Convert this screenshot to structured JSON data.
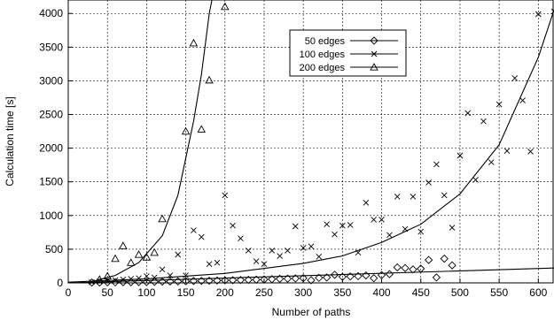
{
  "chart_data": {
    "type": "scatter",
    "title": "",
    "xlabel": "Number of paths",
    "ylabel": "Calculation time [s]",
    "xlim": [
      0,
      620
    ],
    "ylim": [
      0,
      4200
    ],
    "xticks": [
      0,
      50,
      100,
      150,
      200,
      250,
      300,
      350,
      400,
      450,
      500,
      550,
      600
    ],
    "yticks": [
      0,
      500,
      1000,
      1500,
      2000,
      2500,
      3000,
      3500,
      4000
    ],
    "grid": true,
    "legend_position": "top-center",
    "series": [
      {
        "name": "50 edges",
        "marker": "diamond",
        "points": [
          [
            30,
            5
          ],
          [
            40,
            5
          ],
          [
            50,
            8
          ],
          [
            60,
            8
          ],
          [
            70,
            10
          ],
          [
            80,
            10
          ],
          [
            90,
            12
          ],
          [
            100,
            12
          ],
          [
            110,
            15
          ],
          [
            120,
            18
          ],
          [
            130,
            20
          ],
          [
            140,
            22
          ],
          [
            150,
            25
          ],
          [
            160,
            28
          ],
          [
            170,
            30
          ],
          [
            180,
            32
          ],
          [
            190,
            35
          ],
          [
            200,
            38
          ],
          [
            210,
            40
          ],
          [
            220,
            42
          ],
          [
            230,
            45
          ],
          [
            240,
            48
          ],
          [
            250,
            50
          ],
          [
            260,
            55
          ],
          [
            270,
            60
          ],
          [
            280,
            62
          ],
          [
            290,
            65
          ],
          [
            300,
            70
          ],
          [
            310,
            40
          ],
          [
            320,
            75
          ],
          [
            330,
            80
          ],
          [
            340,
            120
          ],
          [
            350,
            90
          ],
          [
            360,
            95
          ],
          [
            370,
            100
          ],
          [
            380,
            110
          ],
          [
            390,
            70
          ],
          [
            400,
            115
          ],
          [
            410,
            130
          ],
          [
            420,
            230
          ],
          [
            430,
            220
          ],
          [
            440,
            200
          ],
          [
            450,
            210
          ],
          [
            460,
            340
          ],
          [
            470,
            80
          ],
          [
            480,
            360
          ],
          [
            490,
            260
          ]
        ],
        "fit": [
          [
            0,
            0
          ],
          [
            620,
            220
          ]
        ]
      },
      {
        "name": "100 edges",
        "marker": "x",
        "points": [
          [
            30,
            10
          ],
          [
            40,
            20
          ],
          [
            50,
            30
          ],
          [
            60,
            40
          ],
          [
            70,
            50
          ],
          [
            80,
            60
          ],
          [
            90,
            70
          ],
          [
            100,
            100
          ],
          [
            110,
            80
          ],
          [
            120,
            200
          ],
          [
            130,
            110
          ],
          [
            140,
            420
          ],
          [
            150,
            110
          ],
          [
            160,
            780
          ],
          [
            170,
            680
          ],
          [
            180,
            280
          ],
          [
            190,
            300
          ],
          [
            200,
            1300
          ],
          [
            210,
            850
          ],
          [
            220,
            660
          ],
          [
            230,
            480
          ],
          [
            240,
            320
          ],
          [
            250,
            280
          ],
          [
            260,
            480
          ],
          [
            270,
            400
          ],
          [
            280,
            480
          ],
          [
            290,
            840
          ],
          [
            300,
            520
          ],
          [
            310,
            540
          ],
          [
            320,
            390
          ],
          [
            330,
            870
          ],
          [
            340,
            720
          ],
          [
            350,
            850
          ],
          [
            360,
            860
          ],
          [
            370,
            450
          ],
          [
            380,
            1190
          ],
          [
            390,
            940
          ],
          [
            400,
            940
          ],
          [
            410,
            710
          ],
          [
            420,
            1280
          ],
          [
            430,
            800
          ],
          [
            440,
            1280
          ],
          [
            450,
            760
          ],
          [
            460,
            1490
          ],
          [
            470,
            1760
          ],
          [
            480,
            1300
          ],
          [
            490,
            820
          ],
          [
            500,
            1890
          ],
          [
            510,
            2520
          ],
          [
            520,
            1530
          ],
          [
            530,
            2400
          ],
          [
            540,
            1790
          ],
          [
            550,
            2650
          ],
          [
            560,
            1960
          ],
          [
            570,
            3040
          ],
          [
            580,
            2710
          ],
          [
            590,
            1950
          ],
          [
            600,
            3990
          ],
          [
            620,
            4030
          ]
        ],
        "fit": [
          [
            0,
            10
          ],
          [
            100,
            60
          ],
          [
            200,
            140
          ],
          [
            300,
            290
          ],
          [
            350,
            400
          ],
          [
            400,
            600
          ],
          [
            450,
            870
          ],
          [
            500,
            1320
          ],
          [
            550,
            2050
          ],
          [
            600,
            3350
          ],
          [
            620,
            4050
          ]
        ]
      },
      {
        "name": "200 edges",
        "marker": "triangle",
        "points": [
          [
            40,
            50
          ],
          [
            50,
            100
          ],
          [
            60,
            360
          ],
          [
            70,
            550
          ],
          [
            80,
            300
          ],
          [
            90,
            420
          ],
          [
            100,
            380
          ],
          [
            110,
            450
          ],
          [
            120,
            950
          ],
          [
            150,
            2250
          ],
          [
            160,
            3560
          ],
          [
            170,
            2280
          ],
          [
            180,
            3010
          ],
          [
            200,
            4100
          ]
        ],
        "fit": [
          [
            30,
            20
          ],
          [
            60,
            110
          ],
          [
            90,
            300
          ],
          [
            120,
            700
          ],
          [
            140,
            1300
          ],
          [
            160,
            2400
          ],
          [
            170,
            3100
          ],
          [
            180,
            4000
          ],
          [
            185,
            4300
          ]
        ]
      }
    ]
  }
}
